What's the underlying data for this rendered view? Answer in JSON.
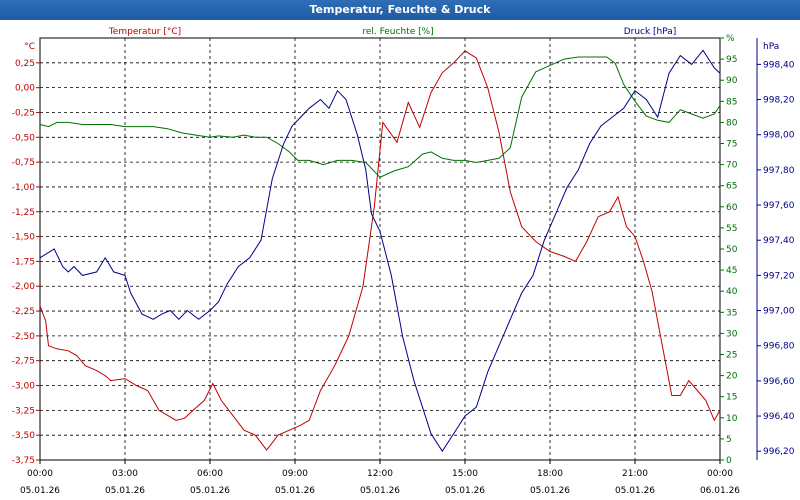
{
  "chart_data": {
    "type": "line",
    "title": "Temperatur, Feuchte & Druck",
    "x_ticks": [
      {
        "time": "00:00",
        "date": "05.01.26"
      },
      {
        "time": "03:00",
        "date": "05.01.26"
      },
      {
        "time": "06:00",
        "date": "05.01.26"
      },
      {
        "time": "09:00",
        "date": "05.01.26"
      },
      {
        "time": "12:00",
        "date": "05.01.26"
      },
      {
        "time": "15:00",
        "date": "05.01.26"
      },
      {
        "time": "18:00",
        "date": "05.01.26"
      },
      {
        "time": "21:00",
        "date": "05.01.26"
      },
      {
        "time": "00:00",
        "date": "06.01.26"
      }
    ],
    "x_range_hours": [
      0,
      24
    ],
    "axes": {
      "temperature": {
        "unit": "°C",
        "min": -3.75,
        "max": 0.5,
        "ticks": [
          "0,25",
          "0,00",
          "-0,25",
          "-0,50",
          "-0,75",
          "-1,00",
          "-1,25",
          "-1,50",
          "-1,75",
          "-2,00",
          "-2,25",
          "-2,50",
          "-2,75",
          "-3,00",
          "-3,25",
          "-3,50",
          "-3,75"
        ],
        "tick_values": [
          0.25,
          0,
          -0.25,
          -0.5,
          -0.75,
          -1,
          -1.25,
          -1.5,
          -1.75,
          -2,
          -2.25,
          -2.5,
          -2.75,
          -3,
          -3.25,
          -3.5,
          -3.75
        ]
      },
      "humidity": {
        "unit": "%",
        "min": 0,
        "max": 100,
        "ticks": [
          "0",
          "5",
          "10",
          "15",
          "20",
          "25",
          "30",
          "35",
          "40",
          "45",
          "50",
          "55",
          "60",
          "65",
          "70",
          "75",
          "80",
          "85",
          "90",
          "95",
          "%"
        ],
        "tick_values": [
          0,
          5,
          10,
          15,
          20,
          25,
          30,
          35,
          40,
          45,
          50,
          55,
          60,
          65,
          70,
          75,
          80,
          85,
          90,
          95,
          100
        ]
      },
      "pressure": {
        "unit": "hPa",
        "min": 996.15,
        "max": 998.55,
        "ticks": [
          "996,20",
          "996,40",
          "996,60",
          "996,80",
          "997,00",
          "997,20",
          "997,40",
          "997,60",
          "997,80",
          "998,00",
          "998,20",
          "998,40"
        ],
        "tick_values": [
          996.2,
          996.4,
          996.6,
          996.8,
          997.0,
          997.2,
          997.4,
          997.6,
          997.8,
          998.0,
          998.2,
          998.4
        ]
      }
    },
    "series": [
      {
        "name": "Temperatur [°C]",
        "axis": "temperature",
        "color": "#c00000",
        "x": [
          0,
          0.2,
          0.3,
          0.6,
          1,
          1.3,
          1.6,
          2,
          2.3,
          2.5,
          3,
          3.4,
          3.8,
          4.2,
          4.5,
          4.8,
          5.1,
          5.4,
          5.8,
          6.1,
          6.4,
          6.8,
          7.2,
          7.6,
          8,
          8.4,
          8.8,
          9.2,
          9.5,
          9.9,
          10.4,
          10.9,
          11.4,
          11.8,
          12.1,
          12.6,
          13,
          13.4,
          13.8,
          14.2,
          14.6,
          15,
          15.4,
          15.8,
          16.2,
          16.6,
          17,
          17.5,
          18,
          18.5,
          18.9,
          19.3,
          19.7,
          20.1,
          20.4,
          20.7,
          21,
          21.3,
          21.6,
          22,
          22.3,
          22.6,
          22.9,
          23.2,
          23.5,
          23.8,
          24
        ],
        "values": [
          -2.2,
          -2.35,
          -2.6,
          -2.63,
          -2.65,
          -2.7,
          -2.8,
          -2.85,
          -2.9,
          -2.95,
          -2.93,
          -3.0,
          -3.05,
          -3.25,
          -3.3,
          -3.35,
          -3.33,
          -3.25,
          -3.15,
          -2.98,
          -3.15,
          -3.3,
          -3.45,
          -3.5,
          -3.65,
          -3.5,
          -3.45,
          -3.4,
          -3.35,
          -3.05,
          -2.8,
          -2.5,
          -2.0,
          -1.2,
          -0.35,
          -0.55,
          -0.15,
          -0.4,
          -0.05,
          0.15,
          0.25,
          0.37,
          0.3,
          0.0,
          -0.45,
          -1.05,
          -1.4,
          -1.55,
          -1.65,
          -1.7,
          -1.75,
          -1.55,
          -1.3,
          -1.25,
          -1.1,
          -1.4,
          -1.5,
          -1.75,
          -2.05,
          -2.65,
          -3.1,
          -3.1,
          -2.95,
          -3.05,
          -3.15,
          -3.35,
          -3.25
        ]
      },
      {
        "name": "rel. Feuchte [%]",
        "axis": "humidity",
        "color": "#007000",
        "x": [
          0,
          0.3,
          0.6,
          1,
          1.5,
          2,
          2.5,
          3,
          3.5,
          4,
          4.5,
          5,
          5.5,
          6,
          6.3,
          6.8,
          7.2,
          7.6,
          8,
          8.4,
          8.8,
          9.1,
          9.5,
          10,
          10.5,
          11,
          11.5,
          12,
          12.5,
          13,
          13.5,
          13.8,
          14.2,
          14.6,
          15,
          15.4,
          15.8,
          16.2,
          16.6,
          17,
          17.5,
          18,
          18.5,
          19,
          19.5,
          20,
          20.3,
          20.6,
          21,
          21.4,
          21.8,
          22.2,
          22.6,
          23,
          23.4,
          23.8,
          24
        ],
        "values": [
          79.5,
          79,
          80,
          80,
          79.5,
          79.5,
          79.5,
          79,
          79,
          79,
          78.5,
          77.5,
          77,
          76.5,
          76.8,
          76.5,
          77,
          76.5,
          76.5,
          75,
          73,
          71,
          71,
          70,
          71,
          71,
          70.5,
          67,
          68.5,
          69.5,
          72.5,
          73,
          71.5,
          71,
          71,
          70.5,
          71,
          71.5,
          74,
          86,
          92,
          93.5,
          95,
          95.5,
          95.5,
          95.5,
          94,
          89,
          85,
          81.5,
          80.5,
          80,
          83,
          82,
          81,
          82,
          84
        ]
      },
      {
        "name": "Druck [hPa]",
        "axis": "pressure",
        "color": "#00008b",
        "x": [
          0,
          0.5,
          0.8,
          1,
          1.2,
          1.5,
          2,
          2.3,
          2.6,
          3,
          3.2,
          3.6,
          4,
          4.3,
          4.6,
          4.9,
          5.2,
          5.6,
          6,
          6.3,
          6.6,
          7,
          7.4,
          7.8,
          8.2,
          8.6,
          8.9,
          9.2,
          9.5,
          9.9,
          10.2,
          10.5,
          10.8,
          11.2,
          11.5,
          11.7,
          12,
          12.4,
          12.8,
          13.2,
          13.5,
          13.8,
          14.2,
          14.6,
          15,
          15.4,
          15.8,
          16.2,
          16.6,
          17,
          17.4,
          17.8,
          18.2,
          18.6,
          19,
          19.4,
          19.8,
          20.2,
          20.6,
          21,
          21.4,
          21.8,
          22.2,
          22.6,
          23,
          23.4,
          23.8,
          24
        ],
        "values": [
          997.3,
          997.35,
          997.25,
          997.22,
          997.25,
          997.2,
          997.22,
          997.3,
          997.22,
          997.2,
          997.1,
          996.98,
          996.95,
          996.98,
          997.0,
          996.95,
          997.0,
          996.95,
          997.0,
          997.05,
          997.15,
          997.25,
          997.3,
          997.4,
          997.75,
          997.95,
          998.05,
          998.1,
          998.15,
          998.2,
          998.15,
          998.25,
          998.2,
          998.0,
          997.8,
          997.55,
          997.45,
          997.2,
          996.85,
          996.6,
          996.45,
          996.3,
          996.2,
          996.3,
          996.4,
          996.45,
          996.65,
          996.8,
          996.95,
          997.1,
          997.2,
          997.4,
          997.55,
          997.7,
          997.8,
          997.95,
          998.05,
          998.1,
          998.15,
          998.25,
          998.2,
          998.1,
          998.35,
          998.45,
          998.4,
          998.48,
          998.38,
          998.35
        ]
      }
    ]
  }
}
